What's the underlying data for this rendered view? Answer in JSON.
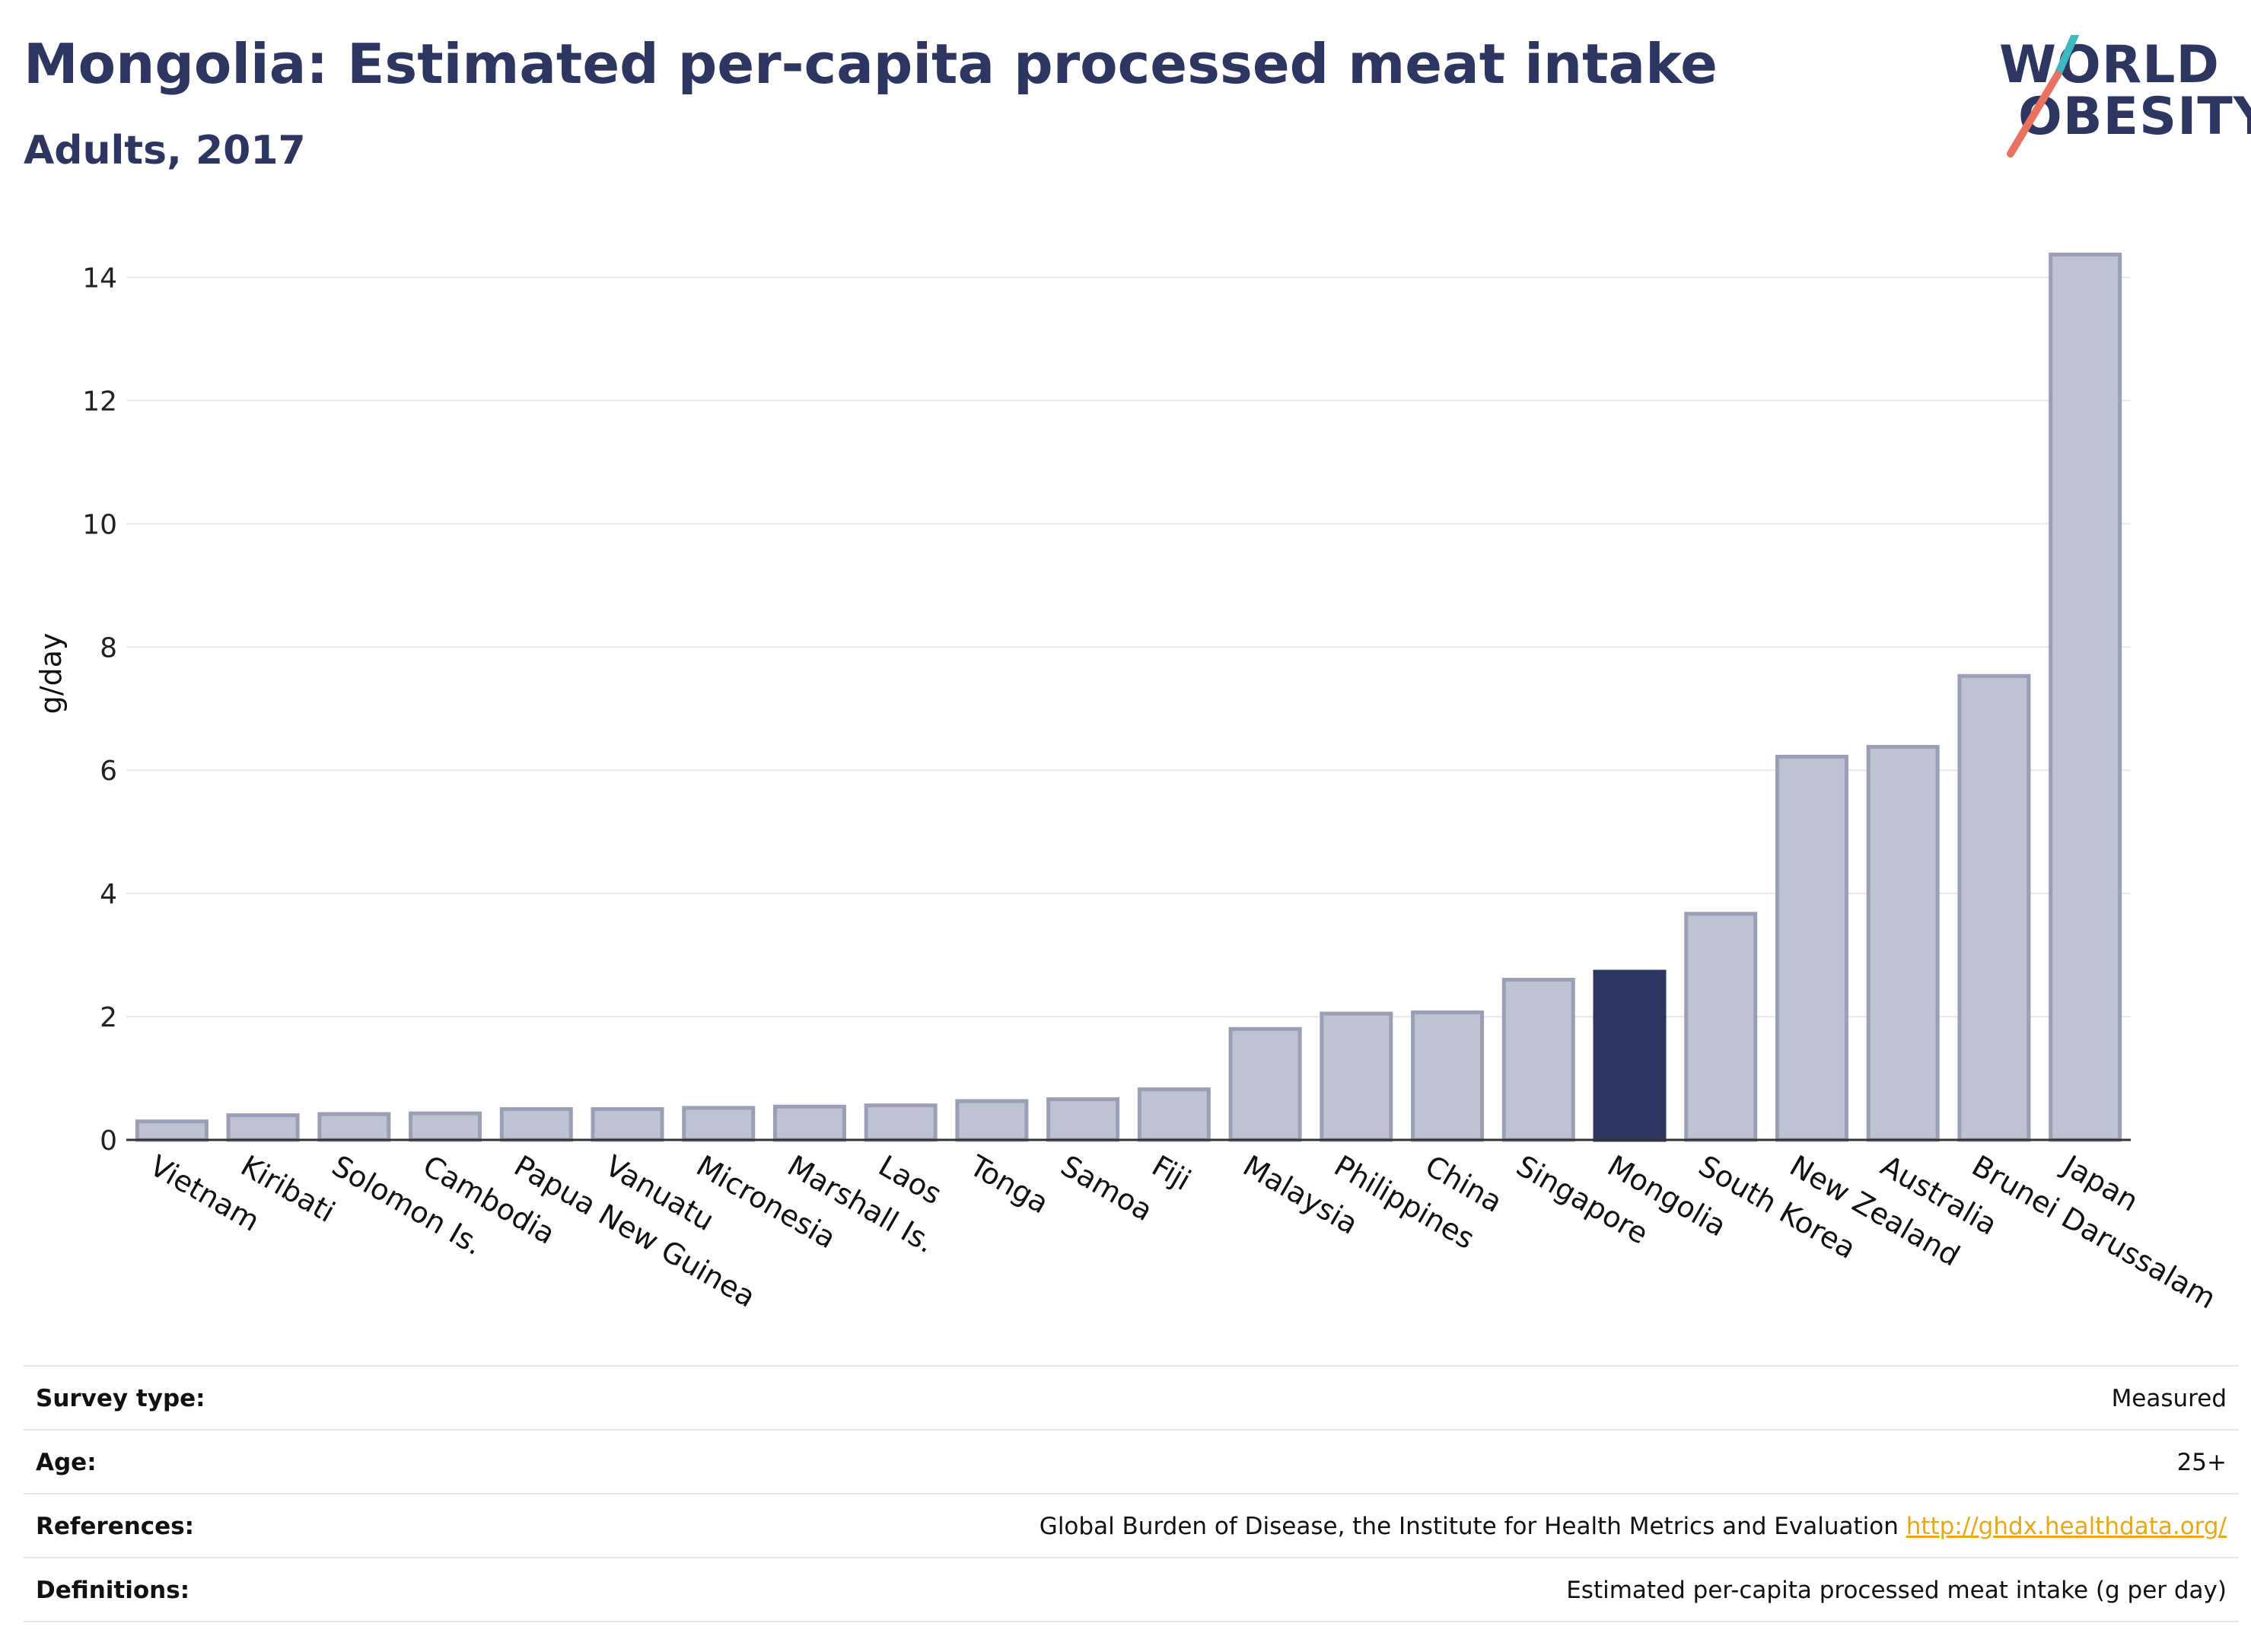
{
  "header": {
    "title": "Mongolia: Estimated per-capita processed meat intake",
    "subtitle": "Adults, 2017"
  },
  "logo": {
    "line1": "WORLD",
    "line2": "OBESITY",
    "accent_teal": "#3fb8c0",
    "accent_coral": "#e8715f"
  },
  "colors": {
    "bar_default": "#bfc2d0",
    "bar_default_stroke": "#9a9fb6",
    "bar_highlight": "#2d3561",
    "grid": "#e8e8e8",
    "axis": "#333333"
  },
  "chart_data": {
    "type": "bar",
    "ylabel": "g/day",
    "ylim": [
      0,
      14.5
    ],
    "yticks": [
      0,
      2,
      4,
      6,
      8,
      10,
      12,
      14
    ],
    "grid": true,
    "highlight": "Mongolia",
    "categories": [
      "Vietnam",
      "Kiribati",
      "Solomon Is.",
      "Cambodia",
      "Papua New Guinea",
      "Vanuatu",
      "Micronesia",
      "Marshall Is.",
      "Laos",
      "Tonga",
      "Samoa",
      "Fiji",
      "Malaysia",
      "Philippines",
      "China",
      "Singapore",
      "Mongolia",
      "South Korea",
      "New Zealand",
      "Australia",
      "Brunei Darussalam",
      "Japan"
    ],
    "values": [
      0.3,
      0.4,
      0.42,
      0.43,
      0.5,
      0.5,
      0.52,
      0.54,
      0.56,
      0.63,
      0.66,
      0.82,
      1.8,
      2.05,
      2.07,
      2.6,
      2.73,
      3.67,
      6.22,
      6.38,
      7.53,
      14.37
    ]
  },
  "info_table": [
    {
      "key": "Survey type:",
      "value": "Measured"
    },
    {
      "key": "Age:",
      "value": "25+"
    },
    {
      "key": "References:",
      "value": "Global Burden of Disease, the Institute for Health Metrics and Evaluation",
      "link": "http://ghdx.healthdata.org/"
    },
    {
      "key": "Definitions:",
      "value": "Estimated per-capita processed meat intake (g per day)"
    }
  ]
}
